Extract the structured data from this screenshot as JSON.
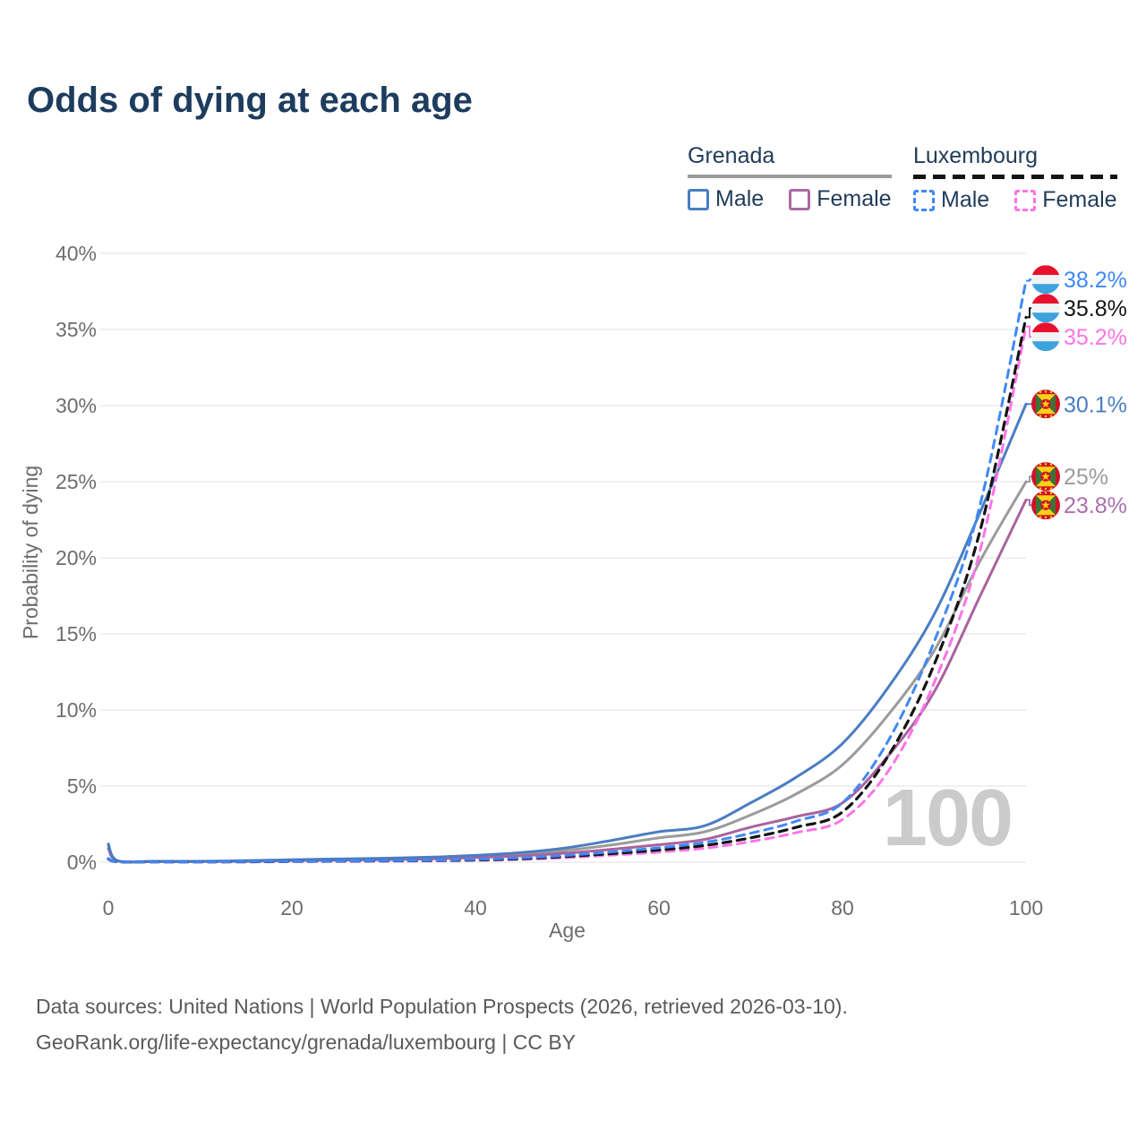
{
  "title": "Odds of dying at each age",
  "legend": {
    "grenada": {
      "title": "Grenada",
      "male_label": "Male",
      "female_label": "Female",
      "male_color": "#4a7dc2",
      "female_color": "#ab68a5",
      "total_color": "#9b9b9b",
      "line_style": "solid"
    },
    "luxembourg": {
      "title": "Luxembourg",
      "male_label": "Male",
      "female_label": "Female",
      "male_color": "#3f88f7",
      "female_color": "#fc74e8",
      "total_color": "#141414",
      "line_style": "dashed"
    }
  },
  "chart_data": {
    "type": "line",
    "title": "Odds of dying at each age",
    "xlabel": "Age",
    "ylabel": "Probability of dying",
    "xlim": [
      0,
      100
    ],
    "ylim": [
      0,
      40
    ],
    "xticks": [
      0,
      20,
      40,
      60,
      80,
      100
    ],
    "xtick_labels": [
      "0",
      "20",
      "40",
      "60",
      "80",
      "100"
    ],
    "yticks": [
      0,
      5,
      10,
      15,
      20,
      25,
      30,
      35,
      40
    ],
    "ytick_labels": [
      "0%",
      "5%",
      "10%",
      "15%",
      "20%",
      "25%",
      "30%",
      "35%",
      "40%"
    ],
    "grid": "horizontal",
    "legend_position": "top-right",
    "watermark": "100",
    "x": [
      0,
      1,
      5,
      10,
      15,
      20,
      25,
      30,
      35,
      40,
      45,
      50,
      55,
      60,
      65,
      70,
      75,
      80,
      85,
      90,
      95,
      100
    ],
    "series": [
      {
        "id": "grenada-total",
        "name": "Grenada",
        "country": "grenada",
        "flag": "grd",
        "color": "#9b9b9b",
        "dash": "solid",
        "width": 3,
        "end_label": "25%",
        "end_value": 25.0,
        "label_color": "#9b9b9b",
        "values": [
          1.05,
          0.09,
          0.05,
          0.05,
          0.08,
          0.13,
          0.17,
          0.21,
          0.27,
          0.37,
          0.52,
          0.78,
          1.15,
          1.6,
          2.0,
          3.1,
          4.5,
          6.4,
          9.7,
          13.9,
          19.8,
          25.0
        ]
      },
      {
        "id": "grenada-female",
        "name": "Grenada Female",
        "country": "grenada",
        "flag": "grd",
        "color": "#a9639e",
        "dash": "solid",
        "width": 3,
        "end_label": "23.8%",
        "end_value": 23.8,
        "label_color": "#ad6fae",
        "values": [
          0.9,
          0.08,
          0.04,
          0.04,
          0.06,
          0.1,
          0.13,
          0.16,
          0.21,
          0.3,
          0.42,
          0.6,
          0.85,
          1.15,
          1.5,
          2.3,
          3.0,
          3.9,
          7.0,
          11.2,
          17.5,
          23.8
        ]
      },
      {
        "id": "grenada-male",
        "name": "Grenada Male",
        "country": "grenada",
        "flag": "grd",
        "color": "#4a7dc2",
        "dash": "solid",
        "width": 3,
        "end_label": "30.1%",
        "end_value": 30.1,
        "label_color": "#4a7dc2",
        "values": [
          1.2,
          0.1,
          0.06,
          0.06,
          0.1,
          0.16,
          0.21,
          0.26,
          0.33,
          0.45,
          0.63,
          0.95,
          1.45,
          2.0,
          2.4,
          3.9,
          5.6,
          7.8,
          11.5,
          16.3,
          23.0,
          30.1
        ]
      },
      {
        "id": "luxembourg-female",
        "name": "Luxembourg Female",
        "country": "luxembourg",
        "flag": "lux",
        "color": "#fc74e8",
        "dash": "dashed",
        "width": 3,
        "end_label": "35.2%",
        "end_value": 35.2,
        "label_color": "#fc74e8",
        "values": [
          0.2,
          0.02,
          0.015,
          0.015,
          0.02,
          0.03,
          0.05,
          0.06,
          0.08,
          0.12,
          0.18,
          0.3,
          0.47,
          0.66,
          0.92,
          1.35,
          1.95,
          2.8,
          6.0,
          11.8,
          20.5,
          35.2
        ]
      },
      {
        "id": "luxembourg-total",
        "name": "Luxembourg",
        "country": "luxembourg",
        "flag": "lux",
        "color": "#141414",
        "dash": "dashed",
        "width": 3.2,
        "end_label": "35.8%",
        "end_value": 35.8,
        "label_color": "#141414",
        "values": [
          0.22,
          0.03,
          0.02,
          0.02,
          0.03,
          0.05,
          0.07,
          0.09,
          0.11,
          0.15,
          0.23,
          0.38,
          0.57,
          0.8,
          1.1,
          1.6,
          2.3,
          3.3,
          7.0,
          13.0,
          21.8,
          35.8
        ]
      },
      {
        "id": "luxembourg-male",
        "name": "Luxembourg Male",
        "country": "luxembourg",
        "flag": "lux",
        "color": "#3f88f7",
        "dash": "dashed",
        "width": 3,
        "end_label": "38.2%",
        "end_value": 38.2,
        "label_color": "#3f88f7",
        "values": [
          0.25,
          0.03,
          0.02,
          0.02,
          0.04,
          0.06,
          0.08,
          0.1,
          0.13,
          0.18,
          0.28,
          0.45,
          0.68,
          0.95,
          1.3,
          1.9,
          2.7,
          3.9,
          8.0,
          14.5,
          23.5,
          38.2
        ]
      }
    ]
  },
  "footer": {
    "line1": "Data sources: United Nations | World Population Prospects (2026, retrieved 2026-03-10).",
    "line2": "GeoRank.org/life-expectancy/grenada/luxembourg | CC BY"
  }
}
